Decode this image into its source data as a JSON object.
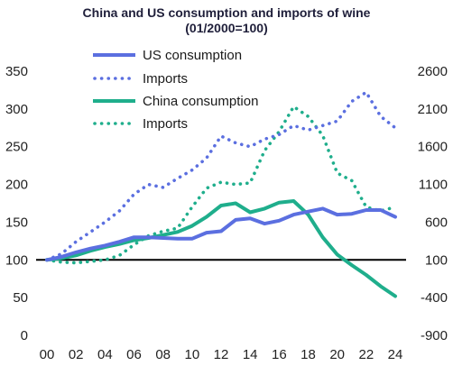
{
  "chart_data": {
    "type": "line",
    "title": "China and US consumption and imports of wine",
    "subtitle": "(01/2000=100)",
    "x": [
      "00",
      "01",
      "02",
      "03",
      "04",
      "05",
      "06",
      "07",
      "08",
      "09",
      "10",
      "11",
      "12",
      "13",
      "14",
      "15",
      "16",
      "17",
      "18",
      "19",
      "20",
      "21",
      "22",
      "23",
      "24"
    ],
    "x_tick_labels": [
      "00",
      "02",
      "04",
      "06",
      "08",
      "10",
      "12",
      "14",
      "16",
      "18",
      "20",
      "22",
      "24"
    ],
    "left_axis": {
      "ylim": [
        0,
        350
      ],
      "ticks": [
        "0",
        "50",
        "100",
        "150",
        "200",
        "250",
        "300",
        "350"
      ]
    },
    "right_axis": {
      "ylim": [
        -900,
        2600
      ],
      "ticks": [
        "-900",
        "-400",
        "100",
        "600",
        "1100",
        "1600",
        "2100",
        "2600"
      ]
    },
    "reference_line": 100,
    "legend_placement": "top-center",
    "series": [
      {
        "name": "US consumption",
        "axis": "left",
        "style": "solid",
        "color": "#5b6fe0",
        "values": [
          100,
          104,
          110,
          115,
          119,
          124,
          130,
          130,
          129,
          128,
          128,
          136,
          138,
          153,
          155,
          148,
          152,
          160,
          164,
          168,
          160,
          161,
          166,
          166,
          157
        ]
      },
      {
        "name": "Imports",
        "axis": "left",
        "style": "dotted",
        "color": "#5b6fe0",
        "values": [
          100,
          108,
          124,
          137,
          150,
          165,
          187,
          200,
          196,
          208,
          219,
          235,
          264,
          255,
          250,
          260,
          266,
          278,
          272,
          278,
          284,
          310,
          322,
          290,
          275
        ]
      },
      {
        "name": "China consumption",
        "axis": "left",
        "style": "solid",
        "color": "#1fae8c",
        "values": [
          100,
          102,
          106,
          112,
          117,
          121,
          126,
          129,
          133,
          137,
          145,
          157,
          172,
          175,
          163,
          168,
          176,
          178,
          160,
          130,
          107,
          93,
          80,
          65,
          52
        ]
      },
      {
        "name": "Imports",
        "axis": "right",
        "style": "dotted",
        "color": "#1fae8c",
        "values": [
          100,
          70,
          60,
          80,
          100,
          160,
          300,
          420,
          480,
          520,
          800,
          1050,
          1130,
          1100,
          1120,
          1550,
          1800,
          2130,
          2000,
          1750,
          1250,
          1150,
          800,
          750,
          800
        ]
      }
    ]
  }
}
